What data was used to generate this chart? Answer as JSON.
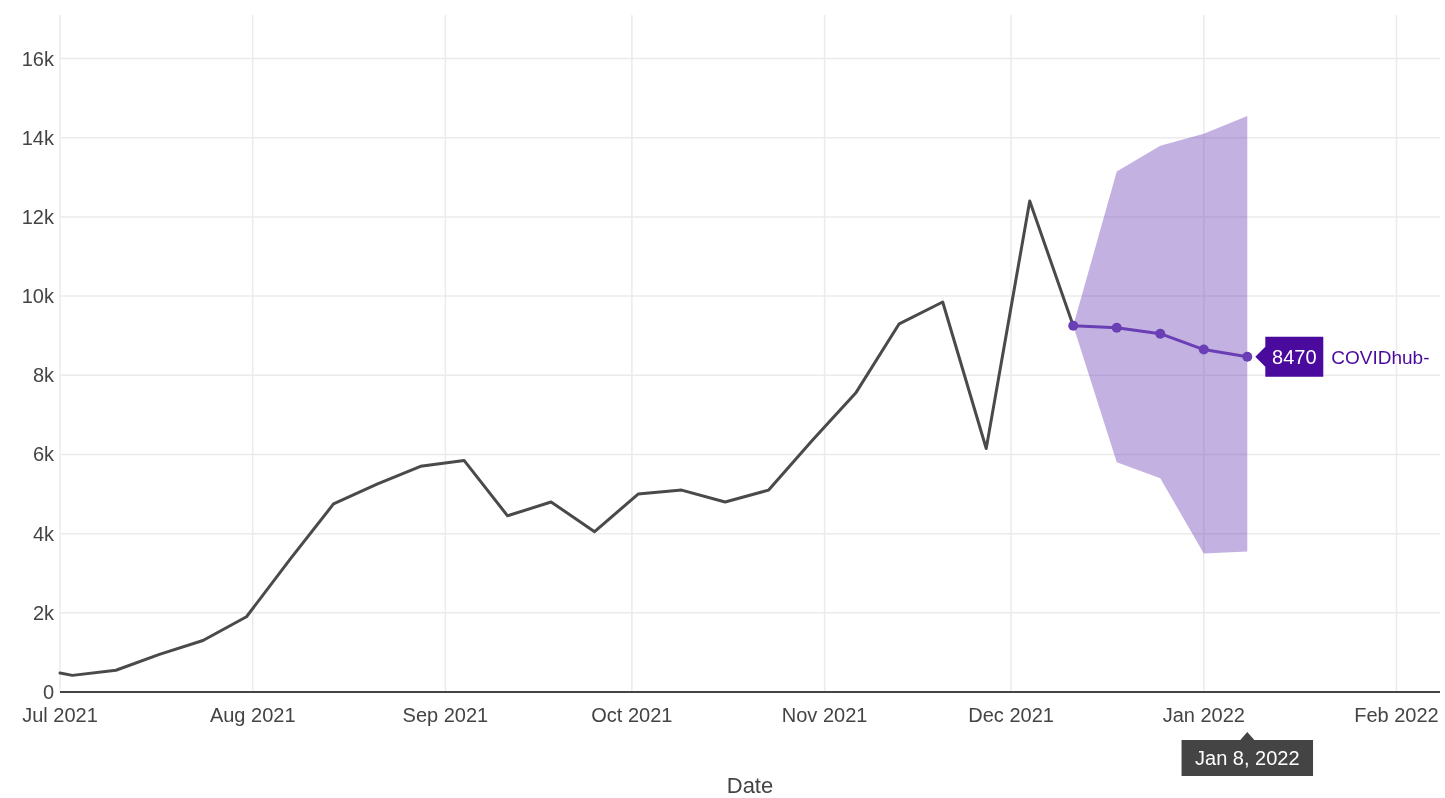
{
  "chart_data": {
    "type": "line",
    "xlabel": "Date",
    "xlim": [
      "2021-07-01",
      "2022-02-08"
    ],
    "ylim": [
      0,
      17100
    ],
    "xticks": [
      {
        "value": "2021-07-01",
        "label": "Jul 2021"
      },
      {
        "value": "2021-08-01",
        "label": "Aug 2021"
      },
      {
        "value": "2021-09-01",
        "label": "Sep 2021"
      },
      {
        "value": "2021-10-01",
        "label": "Oct 2021"
      },
      {
        "value": "2021-11-01",
        "label": "Nov 2021"
      },
      {
        "value": "2021-12-01",
        "label": "Dec 2021"
      },
      {
        "value": "2022-01-01",
        "label": "Jan 2022"
      },
      {
        "value": "2022-02-01",
        "label": "Feb 2022"
      }
    ],
    "yticks": [
      0,
      {
        "value": 2000,
        "label": "2k"
      },
      {
        "value": 4000,
        "label": "4k"
      },
      {
        "value": 6000,
        "label": "6k"
      },
      {
        "value": 8000,
        "label": "8k"
      },
      {
        "value": 10000,
        "label": "10k"
      },
      {
        "value": 12000,
        "label": "12k"
      },
      {
        "value": 14000,
        "label": "14k"
      },
      {
        "value": 16000,
        "label": "16k"
      }
    ],
    "grid": true,
    "series": [
      {
        "color": "#4a4a4a",
        "marker": "none",
        "x": [
          "2021-07-01",
          "2021-07-03",
          "2021-07-10",
          "2021-07-17",
          "2021-07-24",
          "2021-07-31",
          "2021-08-07",
          "2021-08-14",
          "2021-08-21",
          "2021-08-28",
          "2021-09-04",
          "2021-09-11",
          "2021-09-18",
          "2021-09-25",
          "2021-10-02",
          "2021-10-09",
          "2021-10-16",
          "2021-10-23",
          "2021-10-30",
          "2021-11-06",
          "2021-11-13",
          "2021-11-20",
          "2021-11-27",
          "2021-12-04",
          "2021-12-11"
        ],
        "values": [
          480,
          420,
          550,
          950,
          1300,
          1900,
          3350,
          4750,
          5250,
          5700,
          5850,
          4450,
          4800,
          4050,
          5000,
          5100,
          4800,
          5100,
          6350,
          7550,
          9300,
          9850,
          6150,
          12400,
          9250
        ]
      },
      {
        "name": "COVIDhub-",
        "color": "#6a3fb5",
        "marker": "circle",
        "x": [
          "2021-12-11",
          "2021-12-18",
          "2021-12-25",
          "2022-01-01",
          "2022-01-08"
        ],
        "values": [
          9250,
          9200,
          9050,
          8650,
          8470
        ],
        "lower": [
          9250,
          5800,
          5400,
          3500,
          3550
        ],
        "upper": [
          9250,
          13150,
          13800,
          14100,
          14550
        ],
        "value_labels": [
          null,
          null,
          null,
          null,
          "8470"
        ]
      }
    ],
    "annotations": [
      "Jan 8, 2022"
    ]
  }
}
